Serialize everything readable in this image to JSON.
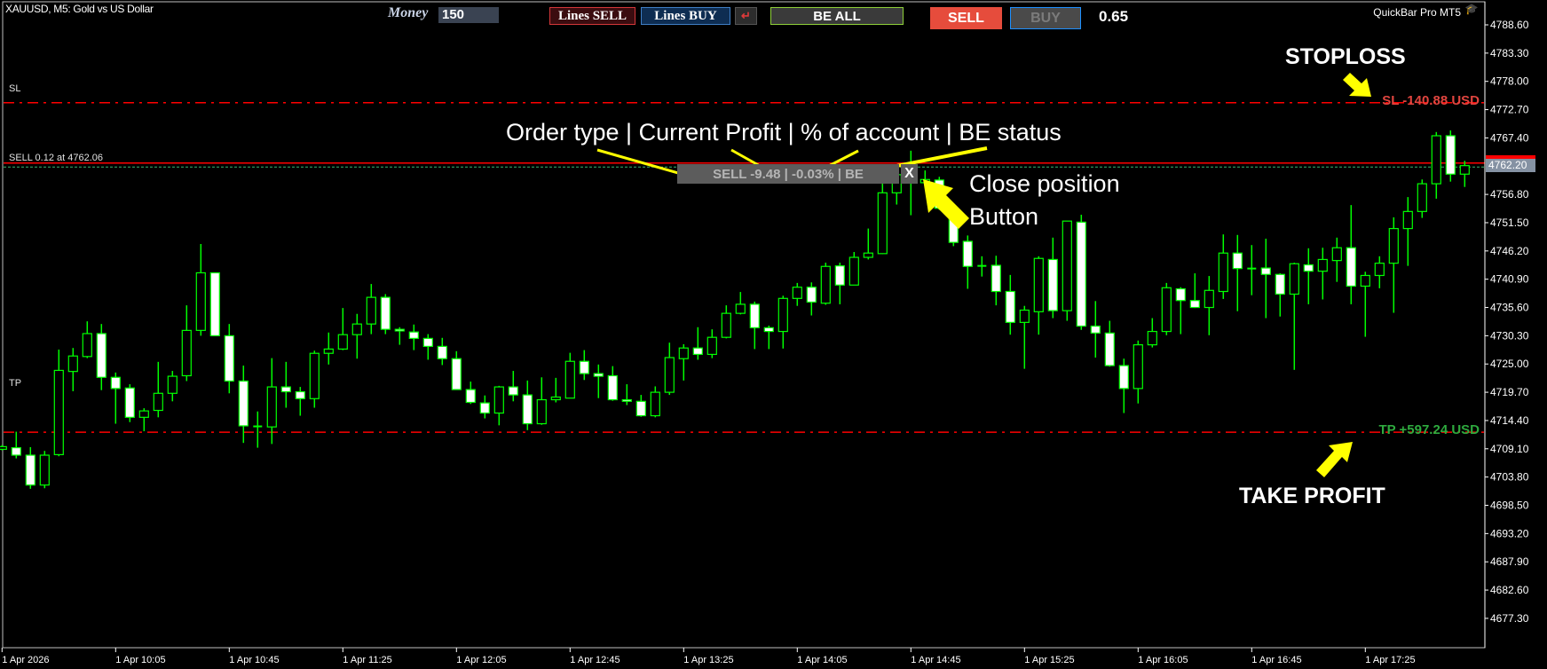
{
  "window": {
    "title": "XAUUSD, M5:  Gold vs US Dollar"
  },
  "toolbar": {
    "money_label": "Money",
    "money_value": "150",
    "lines_sell": "Lines SELL",
    "lines_buy": "Lines BUY",
    "swap_icon": "reverse-arrow-icon",
    "be_all": "BE ALL",
    "sell": "SELL",
    "buy": "BUY",
    "lot": "0.65",
    "brand": "QuickBar Pro MT5",
    "brand_icon": "graduation-cap-icon"
  },
  "chart_labels": {
    "sl": "SL",
    "tp": "TP",
    "position": "SELL 0.12 at 4762.06",
    "sl_result": "SL -140.88 USD",
    "tp_result": "TP +597.24 USD"
  },
  "position_panel": {
    "text": "SELL -9.48 | -0.03% | BE",
    "close": "X"
  },
  "annotations": {
    "fields": "Order type | Current Profit | % of account | BE status",
    "close_line1": "Close position",
    "close_line2": "Button",
    "stoploss": "STOPLOSS",
    "take_profit": "TAKE PROFIT"
  },
  "colors": {
    "background": "#000000",
    "candle_outline": "#00ff00",
    "bear_body": "#ffffff",
    "bull_body": "#000000",
    "sl_line": "#ff0000",
    "tp_line": "#ff0000",
    "ask_line": "#ff0000",
    "position_line": "#3cb371",
    "sl_text": "#e0453f",
    "tp_text": "#2eaa3e",
    "annotation_arrow": "#ffff00"
  },
  "chart_data": {
    "type": "candlestick",
    "symbol": "XAUUSD",
    "timeframe": "M5",
    "ylim": [
      4674.0,
      4792.0
    ],
    "y_ticks": [
      "4788.60",
      "4783.30",
      "4778.00",
      "4772.70",
      "4767.40",
      "4756.80",
      "4751.50",
      "4746.20",
      "4740.90",
      "4735.60",
      "4730.30",
      "4725.00",
      "4719.70",
      "4714.40",
      "4709.10",
      "4703.80",
      "4698.50",
      "4693.20",
      "4687.90",
      "4682.60",
      "4677.30"
    ],
    "bid": "4762.20",
    "ask": 4762.6,
    "sl_price": 4774.0,
    "tp_price": 4712.2,
    "entry_price": 4762.06,
    "x_ticks": [
      "1 Apr 2026",
      "1 Apr 10:05",
      "1 Apr 10:45",
      "1 Apr 11:25",
      "1 Apr 12:05",
      "1 Apr 12:45",
      "1 Apr 13:25",
      "1 Apr 14:05",
      "1 Apr 14:45",
      "1 Apr 15:25",
      "1 Apr 16:05",
      "1 Apr 16:45",
      "1 Apr 17:25"
    ],
    "ohlc_fields": [
      "open",
      "high",
      "low",
      "close"
    ],
    "candles": [
      [
        4709.0,
        4709.8,
        4708.8,
        4709.5
      ],
      [
        4709.3,
        4712.3,
        4707.3,
        4707.9
      ],
      [
        4707.9,
        4709.4,
        4701.6,
        4702.3
      ],
      [
        4702.3,
        4708.7,
        4701.7,
        4707.9
      ],
      [
        4708.0,
        4727.7,
        4707.7,
        4723.8
      ],
      [
        4723.6,
        4728.0,
        4719.9,
        4726.5
      ],
      [
        4726.4,
        4733.0,
        4726.1,
        4730.7
      ],
      [
        4730.7,
        4732.5,
        4720.1,
        4722.5
      ],
      [
        4722.5,
        4723.4,
        4713.8,
        4720.4
      ],
      [
        4720.5,
        4721.2,
        4714.1,
        4715.0
      ],
      [
        4715.0,
        4716.7,
        4712.4,
        4716.2
      ],
      [
        4716.3,
        4725.4,
        4715.0,
        4719.5
      ],
      [
        4719.5,
        4723.7,
        4718.0,
        4722.7
      ],
      [
        4722.8,
        4736.0,
        4721.8,
        4731.3
      ],
      [
        4731.3,
        4747.5,
        4730.3,
        4742.1
      ],
      [
        4742.1,
        4742.1,
        4730.3,
        4730.3
      ],
      [
        4730.3,
        4732.5,
        4719.5,
        4721.8
      ],
      [
        4721.8,
        4724.7,
        4710.2,
        4713.4
      ],
      [
        4713.3,
        4716.1,
        4709.3,
        4713.2
      ],
      [
        4713.2,
        4726.1,
        4710.0,
        4720.7
      ],
      [
        4720.7,
        4725.4,
        4716.8,
        4719.8
      ],
      [
        4719.8,
        4720.7,
        4715.3,
        4718.5
      ],
      [
        4718.5,
        4727.5,
        4716.8,
        4727.0
      ],
      [
        4727.0,
        4730.9,
        4724.9,
        4727.8
      ],
      [
        4727.8,
        4735.5,
        4727.6,
        4730.5
      ],
      [
        4730.5,
        4734.4,
        4726.0,
        4732.5
      ],
      [
        4732.5,
        4740.0,
        4730.6,
        4737.5
      ],
      [
        4737.5,
        4738.1,
        4730.6,
        4731.5
      ],
      [
        4731.5,
        4731.9,
        4728.6,
        4731.2
      ],
      [
        4731.0,
        4732.4,
        4727.6,
        4729.8
      ],
      [
        4729.8,
        4730.6,
        4725.8,
        4728.3
      ],
      [
        4728.3,
        4729.9,
        4724.8,
        4726.0
      ],
      [
        4726.0,
        4727.4,
        4720.2,
        4720.2
      ],
      [
        4720.2,
        4721.7,
        4717.5,
        4717.8
      ],
      [
        4717.7,
        4719.1,
        4714.8,
        4715.8
      ],
      [
        4715.8,
        4720.9,
        4713.5,
        4720.7
      ],
      [
        4720.7,
        4723.7,
        4718.0,
        4719.2
      ],
      [
        4719.2,
        4721.9,
        4712.6,
        4713.8
      ],
      [
        4713.8,
        4722.5,
        4713.6,
        4718.3
      ],
      [
        4718.3,
        4722.4,
        4717.8,
        4718.8
      ],
      [
        4718.6,
        4727.1,
        4718.6,
        4725.5
      ],
      [
        4725.5,
        4727.6,
        4722.0,
        4723.2
      ],
      [
        4723.2,
        4724.9,
        4718.6,
        4722.7
      ],
      [
        4722.8,
        4724.6,
        4718.1,
        4718.3
      ],
      [
        4718.3,
        4721.2,
        4717.3,
        4718.0
      ],
      [
        4718.0,
        4719.2,
        4715.1,
        4715.3
      ],
      [
        4715.3,
        4720.8,
        4715.0,
        4719.7
      ],
      [
        4719.7,
        4729.0,
        4719.2,
        4726.2
      ],
      [
        4726.0,
        4728.7,
        4721.9,
        4728.0
      ],
      [
        4728.0,
        4731.9,
        4725.8,
        4726.8
      ],
      [
        4726.8,
        4731.5,
        4726.1,
        4730.0
      ],
      [
        4730.0,
        4736.0,
        4729.8,
        4734.5
      ],
      [
        4734.5,
        4738.5,
        4734.3,
        4736.2
      ],
      [
        4736.2,
        4736.7,
        4727.8,
        4731.8
      ],
      [
        4731.8,
        4732.2,
        4727.8,
        4731.1
      ],
      [
        4731.1,
        4737.8,
        4727.9,
        4737.3
      ],
      [
        4737.3,
        4740.2,
        4735.9,
        4739.4
      ],
      [
        4739.4,
        4740.3,
        4734.1,
        4736.6
      ],
      [
        4736.4,
        4744.0,
        4736.1,
        4743.3
      ],
      [
        4743.4,
        4744.0,
        4736.2,
        4739.8
      ],
      [
        4739.8,
        4746.0,
        4739.8,
        4745.0
      ],
      [
        4745.0,
        4750.4,
        4744.6,
        4745.8
      ],
      [
        4745.7,
        4758.9,
        4745.6,
        4757.1
      ],
      [
        4757.1,
        4762.0,
        4754.9,
        4760.5
      ],
      [
        4760.5,
        4765.0,
        4752.9,
        4762.4
      ],
      [
        4759.0,
        4761.3,
        4758.5,
        4759.6
      ],
      [
        4759.5,
        4760.1,
        4753.9,
        4754.2
      ],
      [
        4754.2,
        4754.5,
        4747.1,
        4747.8
      ],
      [
        4748.0,
        4749.1,
        4739.1,
        4743.3
      ],
      [
        4743.4,
        4745.2,
        4741.4,
        4743.4
      ],
      [
        4743.5,
        4745.3,
        4736.0,
        4738.6
      ],
      [
        4738.6,
        4741.7,
        4730.5,
        4732.8
      ],
      [
        4732.8,
        4735.9,
        4724.1,
        4735.1
      ],
      [
        4734.8,
        4745.2,
        4730.5,
        4744.8
      ],
      [
        4744.6,
        4748.7,
        4733.6,
        4735.0
      ],
      [
        4735.0,
        4751.8,
        4733.1,
        4751.8
      ],
      [
        4751.6,
        4753.0,
        4731.4,
        4732.1
      ],
      [
        4732.1,
        4736.8,
        4726.2,
        4730.8
      ],
      [
        4730.8,
        4733.1,
        4724.5,
        4724.7
      ],
      [
        4724.7,
        4726.0,
        4715.8,
        4720.4
      ],
      [
        4720.4,
        4729.4,
        4717.6,
        4728.6
      ],
      [
        4728.6,
        4733.6,
        4728.1,
        4731.1
      ],
      [
        4731.1,
        4740.2,
        4730.4,
        4739.3
      ],
      [
        4739.1,
        4739.4,
        4730.6,
        4736.9
      ],
      [
        4736.9,
        4742.0,
        4735.5,
        4735.6
      ],
      [
        4735.6,
        4741.5,
        4730.4,
        4738.8
      ],
      [
        4738.6,
        4749.3,
        4737.2,
        4745.8
      ],
      [
        4745.8,
        4749.2,
        4734.9,
        4742.9
      ],
      [
        4742.9,
        4747.3,
        4737.9,
        4742.9
      ],
      [
        4743.0,
        4748.5,
        4733.6,
        4741.8
      ],
      [
        4741.8,
        4742.0,
        4733.9,
        4738.1
      ],
      [
        4738.1,
        4744.0,
        4723.9,
        4743.8
      ],
      [
        4743.6,
        4746.7,
        4736.2,
        4742.4
      ],
      [
        4742.4,
        4746.8,
        4737.1,
        4744.6
      ],
      [
        4744.4,
        4748.7,
        4740.4,
        4746.8
      ],
      [
        4746.8,
        4754.8,
        4736.2,
        4739.6
      ],
      [
        4739.6,
        4742.3,
        4730.1,
        4741.6
      ],
      [
        4741.6,
        4745.2,
        4739.2,
        4743.9
      ],
      [
        4743.9,
        4752.5,
        4734.6,
        4750.4
      ],
      [
        4750.4,
        4756.3,
        4743.4,
        4753.6
      ],
      [
        4753.6,
        4759.6,
        4752.4,
        4758.8
      ],
      [
        4758.8,
        4768.5,
        4756.0,
        4767.8
      ],
      [
        4767.8,
        4768.8,
        4759.2,
        4760.6
      ],
      [
        4760.6,
        4763.1,
        4758.2,
        4762.2
      ]
    ]
  }
}
